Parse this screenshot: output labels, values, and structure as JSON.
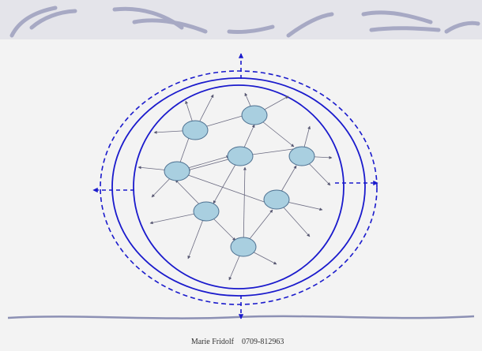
{
  "footer": {
    "name": "Marie Fridolf",
    "phone": "0709-812963"
  }
}
